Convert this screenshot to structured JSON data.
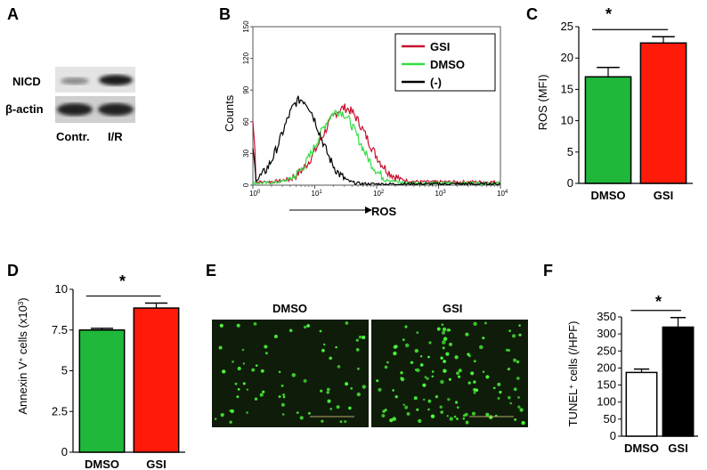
{
  "panels": {
    "A": {
      "letter": "A",
      "rows": [
        "NICD",
        "β-actin"
      ],
      "lanes": [
        "Contr.",
        "I/R"
      ]
    },
    "B": {
      "letter": "B",
      "ylabel": "Counts",
      "xlabel": "ROS",
      "legend": [
        "GSI",
        "DMSO",
        "(-)"
      ],
      "colors": {
        "GSI": "#c8102e",
        "DMSO": "#33dd44",
        "neg": "#000000"
      }
    },
    "C": {
      "letter": "C",
      "ylabel": "ROS (MFI)",
      "significance": "*"
    },
    "D": {
      "letter": "D",
      "ylabel_prefix": "Annexin V",
      "ylabel_sup1": "+",
      "ylabel_mid": " cells (x10",
      "ylabel_sup2": "3",
      "ylabel_suffix": ")",
      "significance": "*"
    },
    "E": {
      "letter": "E",
      "labels": [
        "DMSO",
        "GSI"
      ]
    },
    "F": {
      "letter": "F",
      "ylabel_prefix": "TUNEL",
      "ylabel_sup": "+",
      "ylabel_suffix": " cells (/HPF)",
      "significance": "*"
    }
  },
  "chart_data": [
    {
      "panel": "B",
      "type": "line",
      "xscale": "log",
      "xlim": [
        1,
        10000
      ],
      "ylim": [
        0,
        150
      ],
      "xticks": [
        "10",
        "10",
        "10",
        "10",
        "10"
      ],
      "xtick_exponents": [
        "0",
        "1",
        "2",
        "3",
        "4"
      ],
      "yticks": [
        "0",
        "30",
        "60",
        "90",
        "120",
        "150"
      ],
      "series": [
        {
          "name": "GSI",
          "color": "#c8102e",
          "peak_x": 30,
          "peak_y": 70,
          "width": 0.36,
          "base": 3
        },
        {
          "name": "DMSO",
          "color": "#33dd44",
          "peak_x": 24,
          "peak_y": 68,
          "width": 0.33,
          "base": 2
        },
        {
          "name": "(-)",
          "color": "#000000",
          "peak_x": 6,
          "peak_y": 80,
          "width": 0.3,
          "base": 1
        }
      ]
    },
    {
      "panel": "C",
      "type": "bar",
      "categories": [
        "DMSO",
        "GSI"
      ],
      "values": [
        17,
        22.4
      ],
      "errors": [
        1.5,
        1.0
      ],
      "colors": [
        "#1fb83a",
        "#ff1a0a"
      ],
      "ylabel": "ROS (MFI)",
      "ylim": [
        0,
        25
      ],
      "yticks": [
        "0",
        "5",
        "10",
        "15",
        "20",
        "25"
      ]
    },
    {
      "panel": "D",
      "type": "bar",
      "categories": [
        "DMSO",
        "GSI"
      ],
      "values": [
        7.5,
        8.85
      ],
      "errors": [
        0.1,
        0.3
      ],
      "colors": [
        "#1fb83a",
        "#ff1a0a"
      ],
      "ylim": [
        0,
        10
      ],
      "yticks": [
        "0",
        "2.5",
        "5",
        "7.5",
        "10"
      ]
    },
    {
      "panel": "F",
      "type": "bar",
      "categories": [
        "DMSO",
        "GSI"
      ],
      "values": [
        187,
        320
      ],
      "errors": [
        10,
        28
      ],
      "colors": [
        "#ffffff",
        "#000000"
      ],
      "ylim": [
        0,
        350
      ],
      "yticks": [
        "0",
        "50",
        "100",
        "150",
        "200",
        "250",
        "300",
        "350"
      ]
    }
  ]
}
